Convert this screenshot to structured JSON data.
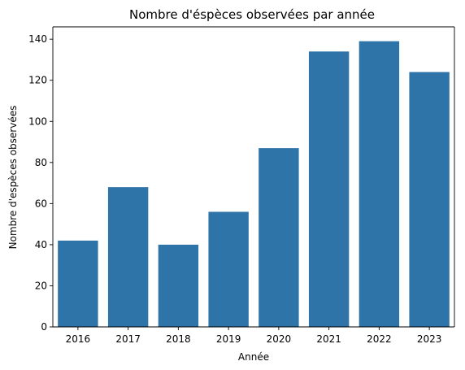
{
  "chart_data": {
    "type": "bar",
    "title": "Nombre d'éspèces observées par année",
    "xlabel": "Année",
    "ylabel": "Nombre d'espèces observées",
    "categories": [
      "2016",
      "2017",
      "2018",
      "2019",
      "2020",
      "2021",
      "2022",
      "2023"
    ],
    "values": [
      42,
      68,
      40,
      56,
      87,
      134,
      139,
      124
    ],
    "ylim": [
      0,
      146
    ],
    "yticks": [
      0,
      20,
      40,
      60,
      80,
      100,
      120,
      140
    ],
    "ytick_labels": [
      "0",
      "20",
      "40",
      "60",
      "80",
      "100",
      "120",
      "140"
    ],
    "grid": false,
    "bar_color": "#2e74a8"
  }
}
